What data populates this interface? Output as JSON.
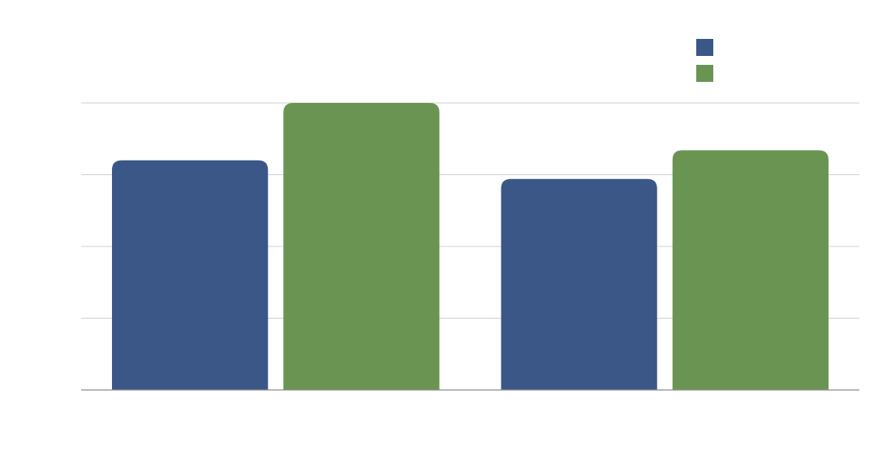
{
  "chart_data": {
    "type": "bar",
    "title": "",
    "xlabel": "",
    "ylabel": "",
    "categories": [
      "",
      ""
    ],
    "ylim": [
      0,
      4
    ],
    "grid": true,
    "legend_position": "top-right",
    "series": [
      {
        "name": "",
        "color": "#3a5787",
        "values": [
          3.2,
          2.94
        ]
      },
      {
        "name": "",
        "color": "#6a9452",
        "values": [
          4.0,
          3.34
        ]
      }
    ]
  }
}
